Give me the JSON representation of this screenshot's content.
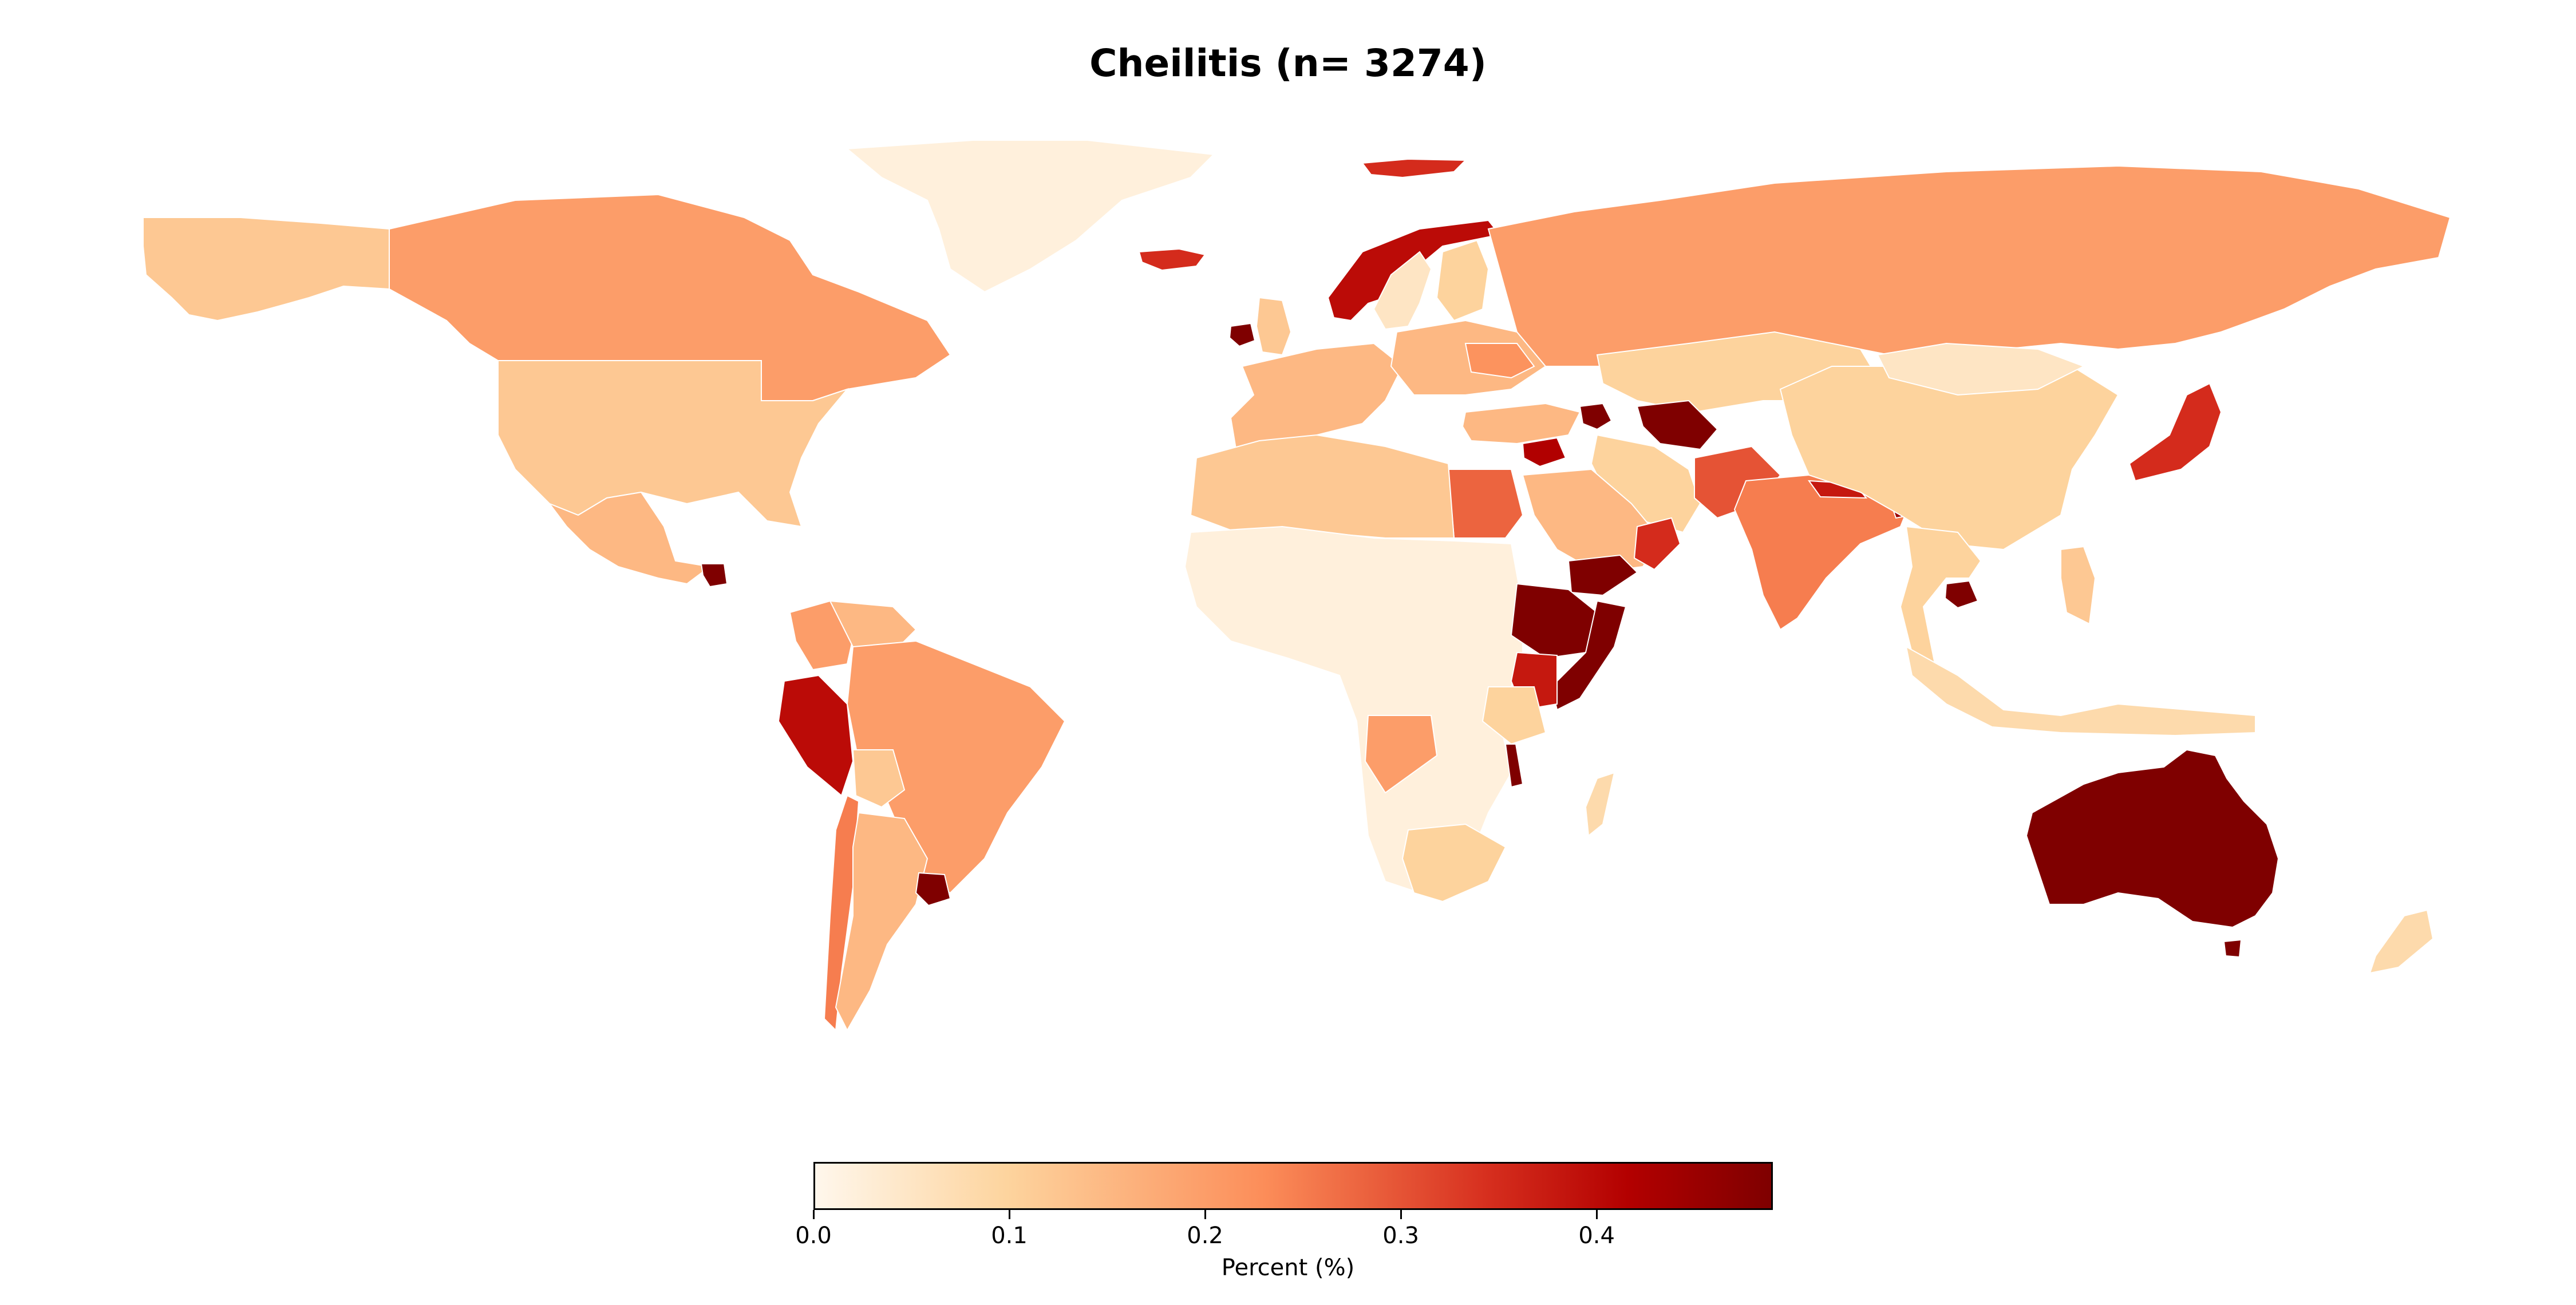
{
  "title": "Cheilitis (n= 3274)",
  "colorbar": {
    "label": "Percent (%)",
    "min": 0.0,
    "max": 0.49,
    "ticks": [
      "0.0",
      "0.1",
      "0.2",
      "0.3",
      "0.4"
    ],
    "colormap": "OrRd"
  },
  "chart_data": {
    "type": "choropleth",
    "unit": "Percent (%)",
    "range": [
      0.0,
      0.49
    ],
    "regions": [
      {
        "name": "Alaska",
        "value": 0.12
      },
      {
        "name": "Canada",
        "value": 0.2
      },
      {
        "name": "United States",
        "value": 0.12
      },
      {
        "name": "Mexico",
        "value": 0.15
      },
      {
        "name": "Guatemala",
        "value": 0.49
      },
      {
        "name": "Greenland",
        "value": 0.02
      },
      {
        "name": "Iceland",
        "value": 0.35
      },
      {
        "name": "Svalbard",
        "value": 0.35
      },
      {
        "name": "Ireland",
        "value": 0.49
      },
      {
        "name": "United Kingdom",
        "value": 0.12
      },
      {
        "name": "Norway",
        "value": 0.4
      },
      {
        "name": "Sweden",
        "value": 0.05
      },
      {
        "name": "Finland",
        "value": 0.1
      },
      {
        "name": "Western Europe",
        "value": 0.15
      },
      {
        "name": "Eastern Europe",
        "value": 0.15
      },
      {
        "name": "Romania",
        "value": 0.22
      },
      {
        "name": "Russia",
        "value": 0.2
      },
      {
        "name": "Kazakhstan",
        "value": 0.1
      },
      {
        "name": "Turkmenistan",
        "value": 0.49
      },
      {
        "name": "Azerbaijan",
        "value": 0.49
      },
      {
        "name": "Turkey",
        "value": 0.15
      },
      {
        "name": "Syria",
        "value": 0.42
      },
      {
        "name": "Iran",
        "value": 0.1
      },
      {
        "name": "Saudi Arabia",
        "value": 0.15
      },
      {
        "name": "Yemen",
        "value": 0.49
      },
      {
        "name": "Oman",
        "value": 0.35
      },
      {
        "name": "Egypt",
        "value": 0.28
      },
      {
        "name": "Pakistan",
        "value": 0.3
      },
      {
        "name": "India",
        "value": 0.25
      },
      {
        "name": "Nepal",
        "value": 0.38
      },
      {
        "name": "Bangladesh",
        "value": 0.45
      },
      {
        "name": "China",
        "value": 0.1
      },
      {
        "name": "Mongolia",
        "value": 0.05
      },
      {
        "name": "Japan",
        "value": 0.35
      },
      {
        "name": "Cambodia",
        "value": 0.49
      },
      {
        "name": "Southeast Asia",
        "value": 0.1
      },
      {
        "name": "Philippines",
        "value": 0.12
      },
      {
        "name": "Indonesia",
        "value": 0.08
      },
      {
        "name": "Australia",
        "value": 0.49
      },
      {
        "name": "New Zealand",
        "value": 0.08
      },
      {
        "name": "North Africa",
        "value": 0.12
      },
      {
        "name": "Sub-Saharan Africa",
        "value": 0.02
      },
      {
        "name": "Ethiopia",
        "value": 0.49
      },
      {
        "name": "Somalia",
        "value": 0.49
      },
      {
        "name": "Kenya",
        "value": 0.38
      },
      {
        "name": "Tanzania",
        "value": 0.1
      },
      {
        "name": "Malawi",
        "value": 0.49
      },
      {
        "name": "Angola",
        "value": 0.2
      },
      {
        "name": "Madagascar",
        "value": 0.08
      },
      {
        "name": "South Africa",
        "value": 0.1
      },
      {
        "name": "Colombia",
        "value": 0.2
      },
      {
        "name": "Venezuela",
        "value": 0.15
      },
      {
        "name": "Peru",
        "value": 0.4
      },
      {
        "name": "Brazil",
        "value": 0.2
      },
      {
        "name": "Bolivia",
        "value": 0.12
      },
      {
        "name": "Chile",
        "value": 0.25
      },
      {
        "name": "Argentina",
        "value": 0.15
      },
      {
        "name": "Uruguay",
        "value": 0.49
      }
    ]
  }
}
